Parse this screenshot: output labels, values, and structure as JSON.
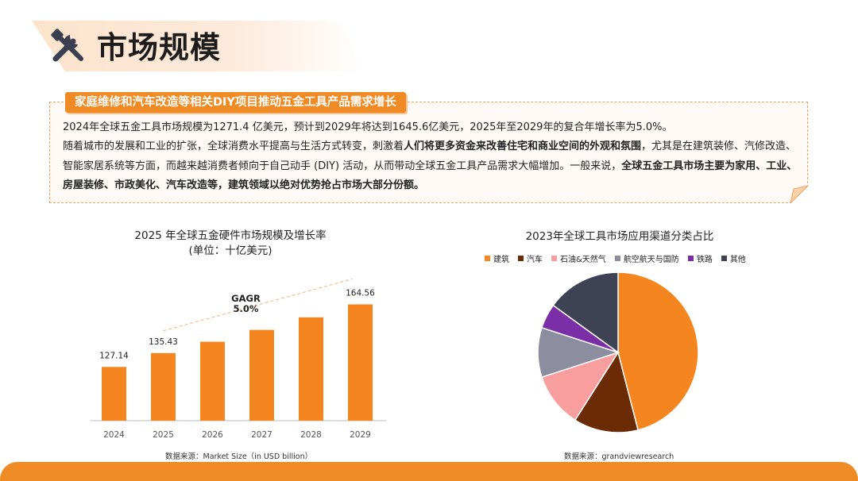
{
  "header": {
    "title": "市场规模",
    "icon": "tools-icon"
  },
  "summary": {
    "subtitle": "家庭维修和汽车改造等相关DIY项目推动五金工具产品需求增长",
    "line1": "2024年全球五金工具市场规模为1271.4 亿美元，预计到2029年将达到1645.6亿美元，2025年至2029年的复合年增长率为5.0%。",
    "p2_part1": "随着城市的发展和工业的扩张，全球消费水平提高与生活方式转变，刺激着",
    "p2_bold1": "人们将更多资金来改善住宅和商业空间的外观和氛围",
    "p2_part2": "，尤其是在建筑装修、汽修改造、智能家居系统等方面，而越来越消费者倾向于自己动手 (DIY) 活动，从而带动全球五金工具产品需求大幅增加。一般来说，",
    "p2_bold2": "全球五金工具市场主要为家用、工业、房屋装修、市政美化、汽车改造等，建筑领域以绝对优势抢占市场大部分份额。"
  },
  "chart_data": [
    {
      "type": "bar",
      "title": "2025 年全球五金硬件市场规模及增长率",
      "subtitle": "(单位：十亿美元)",
      "categories": [
        "2024",
        "2025",
        "2026",
        "2027",
        "2028",
        "2029"
      ],
      "values": [
        127.14,
        135.43,
        142.2,
        149.3,
        156.8,
        164.56
      ],
      "data_labels": [
        "127.14",
        "135.43",
        "",
        "",
        "",
        "164.56"
      ],
      "annotation": {
        "label": "GAGR",
        "value": "5.0%"
      },
      "bar_color": "#f5861f",
      "ylim": [
        95,
        170
      ],
      "grid": false,
      "source": "数据来源：Market Size（in USD billion）"
    },
    {
      "type": "pie",
      "title": "2023年全球工具市场应用渠道分类占比",
      "labels": [
        "建筑",
        "汽车",
        "石油&天然气",
        "航空航天与国防",
        "铁路",
        "其他"
      ],
      "values": [
        46,
        13,
        11,
        10,
        5,
        15
      ],
      "colors": [
        "#f5861f",
        "#6b2c05",
        "#f99e9e",
        "#8c8ea0",
        "#7b2fa6",
        "#3f4254"
      ],
      "legend_position": "top",
      "source": "数据来源：grandviewresearch"
    }
  ]
}
